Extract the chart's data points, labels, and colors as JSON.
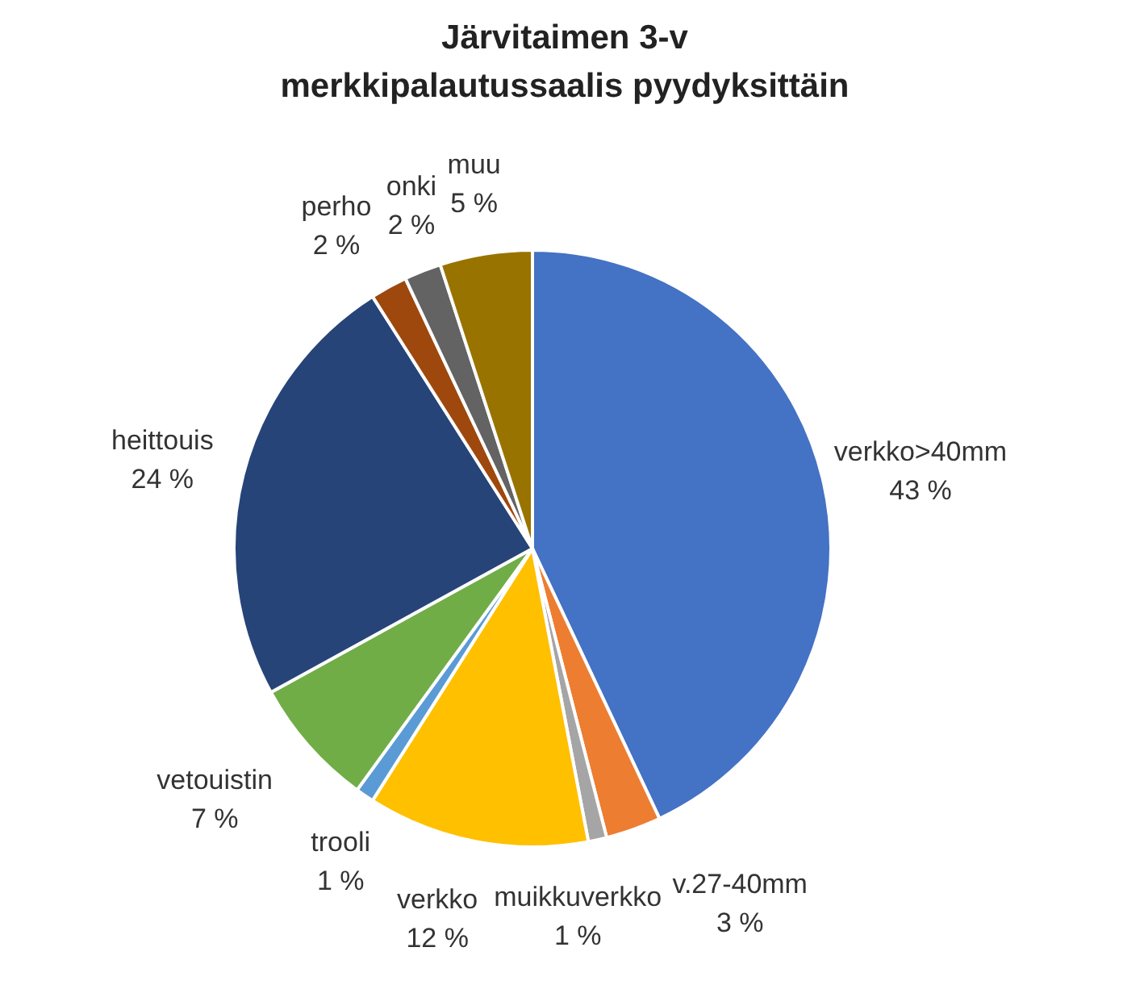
{
  "chart_data": {
    "type": "pie",
    "title": "Järvitaimen 3-v merkkipalautussaalis pyydyksittäin",
    "categories": [
      "verkko>40mm",
      "v.27-40mm",
      "muikkuverkko",
      "verkko",
      "trooli",
      "vetouistin",
      "heittouis",
      "perho",
      "onki",
      "muu"
    ],
    "values": [
      43,
      3,
      1,
      12,
      1,
      7,
      24,
      2,
      2,
      5
    ],
    "value_labels": [
      "43 %",
      "3 %",
      "1 %",
      "12 %",
      "1 %",
      "7 %",
      "24 %",
      "2 %",
      "2 %",
      "5 %"
    ],
    "colors": [
      "#4472c4",
      "#ed7d31",
      "#a5a5a5",
      "#ffc000",
      "#5b9bd5",
      "#70ad47",
      "#264478",
      "#9e480e",
      "#636363",
      "#997300"
    ]
  }
}
